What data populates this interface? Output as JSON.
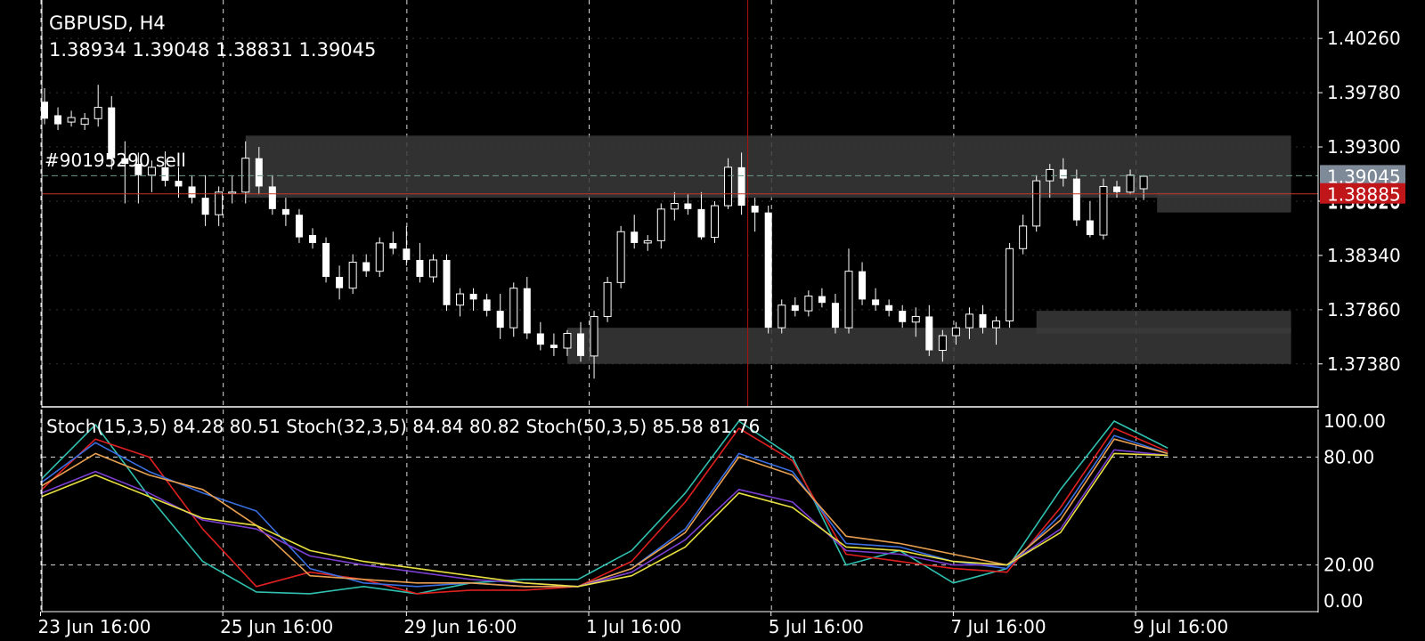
{
  "symbol_timeframe": "GBPUSD, H4",
  "ohlc_readout": "1.38934 1.39048 1.38831 1.39045",
  "order_label": "#90195290 sell",
  "price_tags": {
    "bid": "1.39045",
    "ask": "1.38885",
    "partial": "1.38820"
  },
  "indicator_label": "Stoch(15,3,5) 84.28 80.51 Stoch(32,3,5) 84.84 80.82 Stoch(50,3,5) 85.58 81.76",
  "colors": {
    "background": "#000000",
    "up": "#ffffff",
    "down": "#ffffff",
    "cursor": "#b01010",
    "order_line": "#c0392b",
    "bid_tag": "#7e8a98",
    "ask_tag": "#c0161a",
    "zone": "#3a3a3a"
  },
  "chart_data": [
    {
      "type": "candlestick",
      "title": "GBPUSD, H4",
      "ylim": [
        1.37,
        1.406
      ],
      "y_ticks": [
        "1.40260",
        "1.39780",
        "1.39300",
        "1.38820",
        "1.38340",
        "1.37860",
        "1.37380"
      ],
      "x_ticks": [
        "23 Jun 16:00",
        "25 Jun 16:00",
        "29 Jun 16:00",
        "1 Jul 16:00",
        "5 Jul 16:00",
        "7 Jul 16:00",
        "9 Jul 16:00"
      ],
      "grid": "dashed",
      "candles": [
        [
          1.397,
          1.3982,
          1.395,
          1.3955
        ],
        [
          1.3958,
          1.3965,
          1.3945,
          1.395
        ],
        [
          1.3952,
          1.3962,
          1.3948,
          1.3956
        ],
        [
          1.395,
          1.396,
          1.3945,
          1.3955
        ],
        [
          1.3955,
          1.3985,
          1.3948,
          1.3965
        ],
        [
          1.3965,
          1.3975,
          1.391,
          1.392
        ],
        [
          1.392,
          1.3935,
          1.388,
          1.3915
        ],
        [
          1.3915,
          1.3925,
          1.388,
          1.3905
        ],
        [
          1.3905,
          1.3918,
          1.389,
          1.3912
        ],
        [
          1.3912,
          1.3926,
          1.3895,
          1.39
        ],
        [
          1.39,
          1.3912,
          1.3885,
          1.3895
        ],
        [
          1.3895,
          1.3905,
          1.388,
          1.3885
        ],
        [
          1.3885,
          1.3905,
          1.386,
          1.387
        ],
        [
          1.387,
          1.3895,
          1.386,
          1.389
        ],
        [
          1.389,
          1.3905,
          1.388,
          1.389
        ],
        [
          1.389,
          1.3935,
          1.388,
          1.392
        ],
        [
          1.392,
          1.393,
          1.3888,
          1.3895
        ],
        [
          1.3895,
          1.3905,
          1.387,
          1.3875
        ],
        [
          1.3875,
          1.3885,
          1.386,
          1.387
        ],
        [
          1.387,
          1.3875,
          1.3845,
          1.385
        ],
        [
          1.3852,
          1.3858,
          1.384,
          1.3845
        ],
        [
          1.3845,
          1.385,
          1.381,
          1.3815
        ],
        [
          1.3815,
          1.3825,
          1.3795,
          1.3805
        ],
        [
          1.3805,
          1.3835,
          1.38,
          1.3828
        ],
        [
          1.3828,
          1.3835,
          1.3815,
          1.382
        ],
        [
          1.382,
          1.385,
          1.3815,
          1.3845
        ],
        [
          1.3845,
          1.3855,
          1.3835,
          1.384
        ],
        [
          1.384,
          1.386,
          1.3825,
          1.383
        ],
        [
          1.383,
          1.3845,
          1.381,
          1.3815
        ],
        [
          1.3815,
          1.3835,
          1.381,
          1.383
        ],
        [
          1.383,
          1.3835,
          1.3785,
          1.379
        ],
        [
          1.379,
          1.3805,
          1.378,
          1.38
        ],
        [
          1.38,
          1.3805,
          1.3785,
          1.3795
        ],
        [
          1.3795,
          1.38,
          1.378,
          1.3785
        ],
        [
          1.3785,
          1.38,
          1.376,
          1.377
        ],
        [
          1.377,
          1.381,
          1.3762,
          1.3805
        ],
        [
          1.3805,
          1.3815,
          1.376,
          1.3765
        ],
        [
          1.3765,
          1.3775,
          1.375,
          1.3755
        ],
        [
          1.3755,
          1.3765,
          1.3745,
          1.3752
        ],
        [
          1.3752,
          1.3768,
          1.3745,
          1.3765
        ],
        [
          1.3765,
          1.3775,
          1.374,
          1.3745
        ],
        [
          1.3745,
          1.3785,
          1.3725,
          1.378
        ],
        [
          1.378,
          1.3815,
          1.3775,
          1.381
        ],
        [
          1.381,
          1.386,
          1.3805,
          1.3855
        ],
        [
          1.3855,
          1.387,
          1.384,
          1.3845
        ],
        [
          1.3845,
          1.3852,
          1.3838,
          1.3847
        ],
        [
          1.3847,
          1.388,
          1.384,
          1.3875
        ],
        [
          1.3875,
          1.389,
          1.3865,
          1.388
        ],
        [
          1.388,
          1.3888,
          1.387,
          1.3875
        ],
        [
          1.3875,
          1.389,
          1.3848,
          1.385
        ],
        [
          1.385,
          1.3882,
          1.3845,
          1.3878
        ],
        [
          1.3878,
          1.392,
          1.3875,
          1.3912
        ],
        [
          1.3912,
          1.3925,
          1.387,
          1.3878
        ],
        [
          1.3878,
          1.3885,
          1.3855,
          1.3872
        ],
        [
          1.3872,
          1.3878,
          1.3765,
          1.377
        ],
        [
          1.377,
          1.3795,
          1.3765,
          1.379
        ],
        [
          1.379,
          1.3797,
          1.378,
          1.3785
        ],
        [
          1.3785,
          1.3803,
          1.378,
          1.3798
        ],
        [
          1.3798,
          1.3805,
          1.3788,
          1.3792
        ],
        [
          1.3792,
          1.38,
          1.3765,
          1.377
        ],
        [
          1.377,
          1.384,
          1.3765,
          1.382
        ],
        [
          1.382,
          1.3828,
          1.379,
          1.3795
        ],
        [
          1.3795,
          1.3805,
          1.3785,
          1.379
        ],
        [
          1.379,
          1.3795,
          1.378,
          1.3785
        ],
        [
          1.3785,
          1.379,
          1.377,
          1.3775
        ],
        [
          1.3775,
          1.3788,
          1.3762,
          1.378
        ],
        [
          1.378,
          1.379,
          1.3745,
          1.375
        ],
        [
          1.375,
          1.3768,
          1.374,
          1.3763
        ],
        [
          1.3763,
          1.3775,
          1.3755,
          1.377
        ],
        [
          1.377,
          1.3788,
          1.376,
          1.3782
        ],
        [
          1.3782,
          1.379,
          1.3765,
          1.377
        ],
        [
          1.377,
          1.378,
          1.3755,
          1.3776
        ],
        [
          1.3776,
          1.3845,
          1.377,
          1.384
        ],
        [
          1.384,
          1.387,
          1.3835,
          1.386
        ],
        [
          1.386,
          1.3905,
          1.3855,
          1.39
        ],
        [
          1.39,
          1.3915,
          1.3885,
          1.391
        ],
        [
          1.391,
          1.392,
          1.3895,
          1.3902
        ],
        [
          1.3902,
          1.391,
          1.386,
          1.3865
        ],
        [
          1.3865,
          1.3882,
          1.385,
          1.3852
        ],
        [
          1.3852,
          1.3902,
          1.3848,
          1.3895
        ],
        [
          1.3895,
          1.39,
          1.3885,
          1.389
        ],
        [
          1.389,
          1.391,
          1.3888,
          1.3905
        ],
        [
          1.3893,
          1.3905,
          1.3883,
          1.3904
        ]
      ],
      "zones": [
        {
          "y_top": 1.394,
          "y_bottom": 1.3885,
          "x_start": 15,
          "x_end": 93
        },
        {
          "y_top": 1.389,
          "y_bottom": 1.3872,
          "x_start": 83,
          "x_end": 93
        },
        {
          "y_top": 1.3785,
          "y_bottom": 1.3765,
          "x_start": 74,
          "x_end": 93
        },
        {
          "y_top": 1.377,
          "y_bottom": 1.3738,
          "x_start": 39,
          "x_end": 93
        }
      ],
      "order_line_price": 1.38885,
      "bid_line_price": 1.39045,
      "cursor_index": 52
    },
    {
      "type": "line",
      "title": "Stoch(15,3,5) 84.28 80.51 Stoch(32,3,5) 84.84 80.82 Stoch(50,3,5) 85.58 81.76",
      "ylim": [
        0,
        100
      ],
      "y_ticks": [
        "100.00",
        "80.00",
        "20.00",
        "0.00"
      ],
      "x": [
        0,
        4,
        8,
        12,
        16,
        20,
        24,
        28,
        32,
        36,
        40,
        44,
        48,
        52,
        56,
        60,
        64,
        68,
        72,
        76,
        80,
        84
      ],
      "series": [
        {
          "color": "#30c0b0",
          "values": [
            68,
            98,
            58,
            22,
            5,
            4,
            8,
            4,
            10,
            12,
            12,
            28,
            60,
            100,
            80,
            20,
            28,
            10,
            18,
            62,
            100,
            85
          ]
        },
        {
          "color": "#e02020",
          "values": [
            62,
            90,
            80,
            40,
            8,
            16,
            12,
            4,
            6,
            6,
            8,
            22,
            55,
            96,
            78,
            26,
            22,
            18,
            16,
            52,
            96,
            83
          ]
        },
        {
          "color": "#3a6ee0",
          "values": [
            66,
            88,
            72,
            60,
            50,
            18,
            10,
            8,
            10,
            8,
            8,
            18,
            40,
            82,
            72,
            32,
            30,
            22,
            18,
            48,
            92,
            82
          ]
        },
        {
          "color": "#e8a050",
          "values": [
            64,
            82,
            70,
            62,
            42,
            14,
            12,
            10,
            10,
            8,
            8,
            18,
            38,
            80,
            70,
            36,
            32,
            26,
            20,
            45,
            90,
            82
          ]
        },
        {
          "color": "#7b3fd0",
          "values": [
            60,
            72,
            60,
            45,
            40,
            25,
            20,
            16,
            12,
            10,
            8,
            16,
            34,
            62,
            55,
            28,
            26,
            20,
            20,
            40,
            84,
            81
          ]
        },
        {
          "color": "#e8e040",
          "values": [
            58,
            70,
            58,
            46,
            42,
            28,
            22,
            18,
            14,
            10,
            8,
            14,
            30,
            60,
            52,
            30,
            28,
            22,
            20,
            38,
            82,
            81
          ]
        }
      ]
    }
  ]
}
